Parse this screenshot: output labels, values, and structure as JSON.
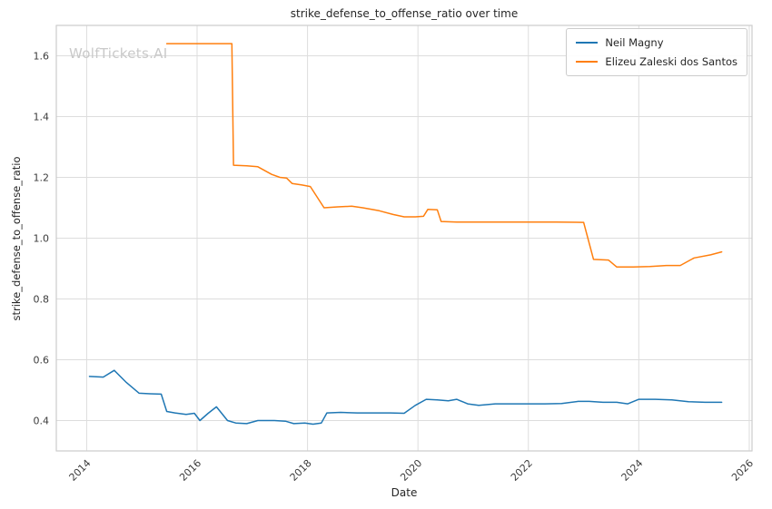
{
  "watermark": "WolfTickets.AI",
  "chart_data": {
    "type": "line",
    "title": "strike_defense_to_offense_ratio over time",
    "xlabel": "Date",
    "ylabel": "strike_defense_to_offense_ratio",
    "xlim": [
      2013.45,
      2026.05
    ],
    "ylim": [
      0.3,
      1.7
    ],
    "x_ticks": [
      2014,
      2016,
      2018,
      2020,
      2022,
      2024,
      2026
    ],
    "x_tick_labels": [
      "2014",
      "2016",
      "2018",
      "2020",
      "2022",
      "2024",
      "2026"
    ],
    "y_ticks": [
      0.4,
      0.6,
      0.8,
      1.0,
      1.2,
      1.4,
      1.6
    ],
    "y_tick_labels": [
      "0.4",
      "0.6",
      "0.8",
      "1.0",
      "1.2",
      "1.4",
      "1.6"
    ],
    "grid": true,
    "legend_position": "upper right",
    "grid_color": "#dddddd",
    "border_color": "#cccccc",
    "series": [
      {
        "name": "Neil Magny",
        "color": "#1f77b4",
        "points": [
          [
            2014.05,
            0.545
          ],
          [
            2014.3,
            0.543
          ],
          [
            2014.5,
            0.565
          ],
          [
            2014.72,
            0.525
          ],
          [
            2014.95,
            0.49
          ],
          [
            2015.15,
            0.488
          ],
          [
            2015.35,
            0.487
          ],
          [
            2015.45,
            0.43
          ],
          [
            2015.6,
            0.425
          ],
          [
            2015.8,
            0.42
          ],
          [
            2015.95,
            0.424
          ],
          [
            2016.05,
            0.4
          ],
          [
            2016.2,
            0.424
          ],
          [
            2016.35,
            0.445
          ],
          [
            2016.55,
            0.4
          ],
          [
            2016.7,
            0.392
          ],
          [
            2016.9,
            0.39
          ],
          [
            2017.1,
            0.4
          ],
          [
            2017.4,
            0.4
          ],
          [
            2017.6,
            0.398
          ],
          [
            2017.75,
            0.39
          ],
          [
            2017.95,
            0.392
          ],
          [
            2018.1,
            0.388
          ],
          [
            2018.25,
            0.392
          ],
          [
            2018.35,
            0.425
          ],
          [
            2018.6,
            0.427
          ],
          [
            2018.9,
            0.425
          ],
          [
            2019.2,
            0.425
          ],
          [
            2019.5,
            0.425
          ],
          [
            2019.75,
            0.424
          ],
          [
            2019.95,
            0.45
          ],
          [
            2020.15,
            0.47
          ],
          [
            2020.35,
            0.468
          ],
          [
            2020.55,
            0.465
          ],
          [
            2020.7,
            0.47
          ],
          [
            2020.9,
            0.455
          ],
          [
            2021.1,
            0.45
          ],
          [
            2021.4,
            0.455
          ],
          [
            2021.7,
            0.455
          ],
          [
            2022.0,
            0.455
          ],
          [
            2022.3,
            0.455
          ],
          [
            2022.6,
            0.456
          ],
          [
            2022.9,
            0.463
          ],
          [
            2023.1,
            0.463
          ],
          [
            2023.35,
            0.46
          ],
          [
            2023.6,
            0.46
          ],
          [
            2023.8,
            0.455
          ],
          [
            2024.0,
            0.47
          ],
          [
            2024.3,
            0.47
          ],
          [
            2024.6,
            0.468
          ],
          [
            2024.9,
            0.462
          ],
          [
            2025.2,
            0.46
          ],
          [
            2025.5,
            0.46
          ]
        ]
      },
      {
        "name": "Elizeu Zaleski dos Santos",
        "color": "#ff7f0e",
        "points": [
          [
            2015.45,
            1.64
          ],
          [
            2015.8,
            1.64
          ],
          [
            2016.2,
            1.64
          ],
          [
            2016.63,
            1.64
          ],
          [
            2016.66,
            1.24
          ],
          [
            2016.9,
            1.238
          ],
          [
            2017.1,
            1.235
          ],
          [
            2017.35,
            1.21
          ],
          [
            2017.5,
            1.2
          ],
          [
            2017.62,
            1.198
          ],
          [
            2017.72,
            1.18
          ],
          [
            2017.9,
            1.175
          ],
          [
            2018.05,
            1.17
          ],
          [
            2018.3,
            1.1
          ],
          [
            2018.55,
            1.103
          ],
          [
            2018.8,
            1.105
          ],
          [
            2019.0,
            1.1
          ],
          [
            2019.3,
            1.09
          ],
          [
            2019.55,
            1.078
          ],
          [
            2019.75,
            1.07
          ],
          [
            2019.95,
            1.07
          ],
          [
            2020.1,
            1.072
          ],
          [
            2020.18,
            1.095
          ],
          [
            2020.35,
            1.093
          ],
          [
            2020.42,
            1.055
          ],
          [
            2020.7,
            1.053
          ],
          [
            2021.0,
            1.053
          ],
          [
            2021.5,
            1.053
          ],
          [
            2022.0,
            1.053
          ],
          [
            2022.5,
            1.053
          ],
          [
            2023.0,
            1.052
          ],
          [
            2023.18,
            0.93
          ],
          [
            2023.45,
            0.928
          ],
          [
            2023.6,
            0.905
          ],
          [
            2023.9,
            0.905
          ],
          [
            2024.2,
            0.907
          ],
          [
            2024.5,
            0.91
          ],
          [
            2024.75,
            0.91
          ],
          [
            2025.0,
            0.935
          ],
          [
            2025.3,
            0.945
          ],
          [
            2025.5,
            0.955
          ]
        ]
      }
    ]
  }
}
